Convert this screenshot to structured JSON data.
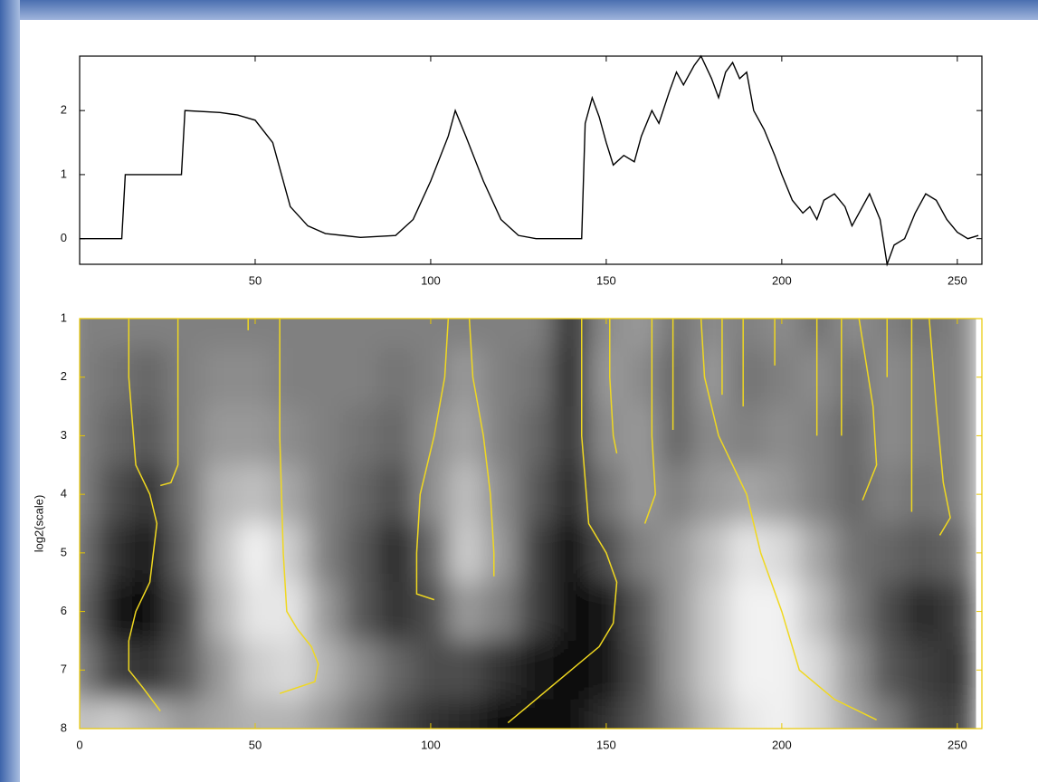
{
  "chart_data": [
    {
      "type": "line",
      "color": "#000000",
      "x": [
        0,
        12,
        13,
        29,
        30,
        40,
        45,
        50,
        55,
        60,
        65,
        70,
        80,
        90,
        95,
        100,
        105,
        107,
        110,
        115,
        120,
        125,
        130,
        143,
        144,
        146,
        148,
        150,
        152,
        155,
        158,
        160,
        163,
        165,
        168,
        170,
        172,
        175,
        177,
        180,
        182,
        184,
        186,
        188,
        190,
        192,
        195,
        198,
        200,
        203,
        206,
        208,
        210,
        212,
        215,
        218,
        220,
        223,
        225,
        228,
        230,
        232,
        235,
        238,
        241,
        244,
        247,
        250,
        253,
        256
      ],
      "values": [
        0,
        0,
        1,
        1,
        2,
        1.97,
        1.93,
        1.85,
        1.5,
        0.5,
        0.2,
        0.08,
        0.02,
        0.05,
        0.3,
        0.9,
        1.6,
        2.0,
        1.6,
        0.9,
        0.3,
        0.05,
        0,
        0,
        1.8,
        2.2,
        1.9,
        1.5,
        1.15,
        1.3,
        1.2,
        1.6,
        2.0,
        1.8,
        2.3,
        2.6,
        2.4,
        2.7,
        2.85,
        2.5,
        2.2,
        2.6,
        2.75,
        2.5,
        2.6,
        2.0,
        1.7,
        1.3,
        1.0,
        0.6,
        0.4,
        0.5,
        0.3,
        0.6,
        0.7,
        0.5,
        0.2,
        0.5,
        0.7,
        0.3,
        -0.4,
        -0.1,
        0.0,
        0.4,
        0.7,
        0.6,
        0.3,
        0.1,
        0.0,
        0.05
      ],
      "xlim": [
        0,
        257
      ],
      "ylim": [
        -0.4,
        2.85
      ],
      "xticks": [
        50,
        100,
        150,
        200,
        250
      ],
      "yticks": [
        0,
        1,
        2
      ]
    },
    {
      "type": "heatmap",
      "ylabel": "log2(scale)",
      "y_inverted": true,
      "axis_color": "#e8c800",
      "line_color": "#f0d820",
      "x": [
        0,
        10,
        20,
        30,
        40,
        50,
        60,
        70,
        80,
        90,
        100,
        110,
        120,
        130,
        140,
        150,
        160,
        170,
        180,
        190,
        200,
        210,
        220,
        230,
        240,
        250
      ],
      "y": [
        1,
        2,
        3,
        4,
        5,
        6,
        7,
        8
      ],
      "z": [
        [
          0,
          0,
          0,
          0,
          0,
          0,
          0,
          0,
          0,
          0,
          0,
          0,
          0,
          0,
          -0.6,
          0.1,
          0.2,
          -0.1,
          0.1,
          0,
          0.1,
          -0.1,
          0.1,
          0,
          -0.1,
          0
        ],
        [
          0,
          -0.1,
          -0.2,
          0,
          0.1,
          0.1,
          0,
          0,
          0,
          -0.1,
          0,
          0.2,
          0,
          -0.1,
          -0.7,
          0.2,
          0.1,
          -0.2,
          0.2,
          -0.1,
          0,
          0.1,
          -0.1,
          0.1,
          0,
          0
        ],
        [
          0,
          -0.2,
          -0.3,
          0,
          0.2,
          0.2,
          0.1,
          0,
          -0.1,
          -0.2,
          0.1,
          0.3,
          0,
          -0.2,
          -0.6,
          0.1,
          0.2,
          -0.2,
          0.1,
          0,
          0.1,
          0,
          -0.2,
          0.1,
          0,
          0
        ],
        [
          0,
          -0.4,
          -0.6,
          -0.1,
          0.4,
          0.5,
          0.3,
          0,
          -0.2,
          -0.4,
          0.1,
          0.5,
          0.1,
          -0.3,
          -0.7,
          -0.1,
          0.2,
          0,
          0.2,
          0.3,
          0.2,
          0,
          -0.2,
          0,
          -0.1,
          0
        ],
        [
          -0.1,
          -0.6,
          -0.8,
          -0.2,
          0.5,
          0.9,
          0.6,
          0,
          -0.3,
          -0.7,
          -0.2,
          0.6,
          0.2,
          -0.5,
          -0.9,
          -0.4,
          0,
          0.2,
          0.5,
          0.8,
          0.7,
          0.3,
          -0.1,
          -0.2,
          -0.3,
          -0.2
        ],
        [
          -0.2,
          -0.8,
          -0.9,
          -0.4,
          0.4,
          0.8,
          0.8,
          0.2,
          -0.3,
          -0.6,
          -0.4,
          0.2,
          0,
          -0.5,
          -0.9,
          -0.8,
          -0.3,
          0.2,
          0.6,
          0.9,
          0.9,
          0.5,
          0,
          -0.4,
          -0.7,
          -0.5
        ],
        [
          0,
          -0.5,
          -0.6,
          -0.3,
          0.2,
          0.6,
          0.7,
          0.4,
          0.1,
          -0.2,
          -0.4,
          -0.4,
          -0.6,
          -0.8,
          -0.9,
          -0.8,
          -0.4,
          0.2,
          0.6,
          0.9,
          0.9,
          0.7,
          0.2,
          -0.3,
          -0.5,
          -0.6
        ],
        [
          0.5,
          0.6,
          0.4,
          0.2,
          0.3,
          0.4,
          0.4,
          0.2,
          -0.1,
          -0.4,
          -0.6,
          -0.7,
          -0.9,
          -0.9,
          -0.9,
          -0.6,
          -0.3,
          0.1,
          0.5,
          0.8,
          0.9,
          0.7,
          0.3,
          0,
          -0.4,
          -0.5
        ]
      ],
      "zlim": [
        -1,
        1
      ],
      "lines": [
        {
          "x": [
            14,
            14,
            16,
            20,
            22,
            20,
            16,
            14,
            14,
            18,
            23
          ],
          "y": [
            1,
            2,
            3.5,
            4,
            4.5,
            5.5,
            6,
            6.5,
            7,
            7.3,
            7.7
          ]
        },
        {
          "x": [
            28,
            28,
            26,
            23
          ],
          "y": [
            1,
            3.5,
            3.8,
            3.85
          ]
        },
        {
          "x": [
            57,
            57,
            58,
            59,
            62,
            66,
            68,
            67,
            57
          ],
          "y": [
            1,
            3,
            5,
            6,
            6.3,
            6.6,
            6.9,
            7.2,
            7.4
          ]
        },
        {
          "x": [
            105,
            104,
            101,
            97,
            96,
            96,
            101
          ],
          "y": [
            1,
            2,
            3,
            4,
            5,
            5.7,
            5.8
          ]
        },
        {
          "x": [
            111,
            112,
            115,
            117,
            118,
            118
          ],
          "y": [
            1,
            2,
            3,
            4,
            5,
            5.4
          ]
        },
        {
          "x": [
            143,
            143,
            145,
            150,
            153,
            152,
            148,
            140,
            130,
            122
          ],
          "y": [
            1,
            3,
            4.5,
            5,
            5.5,
            6.2,
            6.6,
            7,
            7.5,
            7.9
          ]
        },
        {
          "x": [
            151,
            151,
            152,
            153
          ],
          "y": [
            1,
            2,
            3,
            3.3
          ]
        },
        {
          "x": [
            163,
            163,
            164,
            161
          ],
          "y": [
            1,
            3,
            4,
            4.5
          ]
        },
        {
          "x": [
            177,
            178,
            182,
            190,
            194,
            200,
            205,
            215,
            227
          ],
          "y": [
            1,
            2,
            3,
            4,
            5,
            6,
            7,
            7.5,
            7.85
          ]
        },
        {
          "x": [
            222,
            226,
            227,
            223
          ],
          "y": [
            1,
            2.5,
            3.5,
            4.1
          ]
        },
        {
          "x": [
            242,
            244,
            246,
            248,
            245
          ],
          "y": [
            1,
            2.5,
            3.8,
            4.4,
            4.7
          ]
        },
        {
          "x": [
            48,
            48
          ],
          "y": [
            1,
            1.2
          ]
        },
        {
          "x": [
            169,
            169
          ],
          "y": [
            1,
            2.9
          ]
        },
        {
          "x": [
            183,
            183
          ],
          "y": [
            1,
            2.3
          ]
        },
        {
          "x": [
            189,
            189
          ],
          "y": [
            1,
            2.5
          ]
        },
        {
          "x": [
            198,
            198
          ],
          "y": [
            1,
            1.8
          ]
        },
        {
          "x": [
            210,
            210
          ],
          "y": [
            1,
            3.0
          ]
        },
        {
          "x": [
            217,
            217
          ],
          "y": [
            1,
            3.0
          ]
        },
        {
          "x": [
            230,
            230
          ],
          "y": [
            1,
            2.0
          ]
        },
        {
          "x": [
            237,
            237
          ],
          "y": [
            1,
            4.3
          ]
        }
      ],
      "xlim": [
        0,
        257
      ],
      "ylim": [
        1,
        8
      ],
      "xticks": [
        0,
        50,
        100,
        150,
        200,
        250
      ],
      "yticks": [
        1,
        2,
        3,
        4,
        5,
        6,
        7,
        8
      ]
    }
  ]
}
